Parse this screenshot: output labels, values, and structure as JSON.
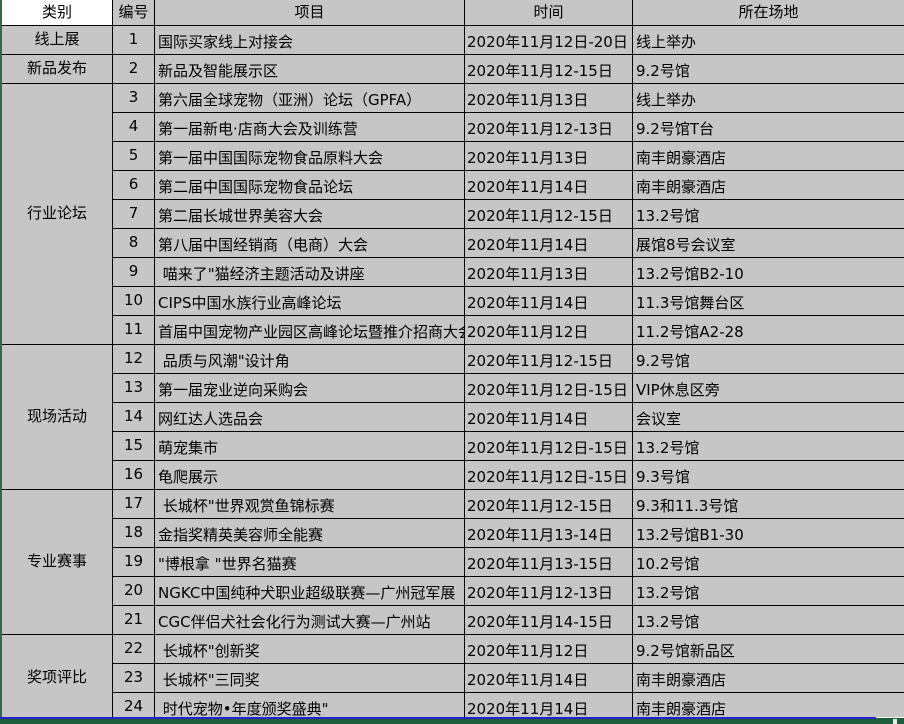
{
  "headers": {
    "category": "类别",
    "number": "编号",
    "item": "项目",
    "time": "时间",
    "venue": "所在场地"
  },
  "groups": [
    {
      "label": "线上展"
    },
    {
      "label": "新品发布"
    },
    {
      "label": "行业论坛"
    },
    {
      "label": "现场活动"
    },
    {
      "label": "专业赛事"
    },
    {
      "label": "奖项评比"
    }
  ],
  "rows": [
    {
      "num": "1",
      "item": "国际买家线上对接会",
      "time": "2020年11月12日-20日",
      "venue": "线上举办"
    },
    {
      "num": "2",
      "item": "新品及智能展示区",
      "time": "2020年11月12-15日",
      "venue": "9.2号馆"
    },
    {
      "num": "3",
      "item": "第六届全球宠物（亚洲）论坛（GPFA）",
      "time": "2020年11月13日",
      "venue": "线上举办"
    },
    {
      "num": "4",
      "item": "第一届新电·店商大会及训练营",
      "time": "2020年11月12-13日",
      "venue": "9.2号馆T台"
    },
    {
      "num": "5",
      "item": "第一届中国国际宠物食品原料大会",
      "time": "2020年11月13日",
      "venue": "南丰朗豪酒店"
    },
    {
      "num": "6",
      "item": "第二届中国国际宠物食品论坛",
      "time": "2020年11月14日",
      "venue": "南丰朗豪酒店"
    },
    {
      "num": "7",
      "item": "第二届长城世界美容大会",
      "time": "2020年11月12-15日",
      "venue": "13.2号馆"
    },
    {
      "num": "8",
      "item": "第八届中国经销商（电商）大会",
      "time": "2020年11月14日",
      "venue": "展馆8号会议室"
    },
    {
      "num": "9",
      "item": " 喵来了\"猫经济主题活动及讲座",
      "time": "2020年11月13日",
      "venue": "13.2号馆B2-10"
    },
    {
      "num": "10",
      "item": "CIPS中国水族行业高峰论坛",
      "time": "2020年11月14日",
      "venue": "11.3号馆舞台区"
    },
    {
      "num": "11",
      "item": "首届中国宠物产业园区高峰论坛暨推介招商大会",
      "time": "2020年11月12日",
      "venue": "11.2号馆A2-28"
    },
    {
      "num": "12",
      "item": " 品质与风潮\"设计角",
      "time": "2020年11月12-15日",
      "venue": "9.2号馆"
    },
    {
      "num": "13",
      "item": "第一届宠业逆向采购会",
      "time": "2020年11月12日-15日",
      "venue": "VIP休息区旁"
    },
    {
      "num": "14",
      "item": "网红达人选品会",
      "time": "2020年11月14日",
      "venue": "会议室"
    },
    {
      "num": "15",
      "item": "萌宠集市",
      "time": "2020年11月12日-15日",
      "venue": "13.2号馆"
    },
    {
      "num": "16",
      "item": "龟爬展示",
      "time": "2020年11月12日-15日",
      "venue": "9.3号馆"
    },
    {
      "num": "17",
      "item": " 长城杯\"世界观赏鱼锦标赛",
      "time": "2020年11月12-15日",
      "venue": "9.3和11.3号馆"
    },
    {
      "num": "18",
      "item": "金指奖精英美容师全能赛",
      "time": "2020年11月13-14日",
      "venue": "13.2号馆B1-30"
    },
    {
      "num": "19",
      "item": "\"博根拿 \"世界名猫赛",
      "time": "2020年11月13-15日",
      "venue": "10.2号馆"
    },
    {
      "num": "20",
      "item": "NGKC中国纯种犬职业超级联赛—广州冠军展",
      "time": "2020年11月12-13日",
      "venue": "13.2号馆"
    },
    {
      "num": "21",
      "item": "CGC伴侣犬社会化行为测试大赛—广州站",
      "time": "2020年11月14-15日",
      "venue": "13.2号馆"
    },
    {
      "num": "22",
      "item": " 长城杯\"创新奖",
      "time": "2020年11月12日",
      "venue": "9.2号馆新品区"
    },
    {
      "num": "23",
      "item": " 长城杯\"三同奖",
      "time": "2020年11月14日",
      "venue": "南丰朗豪酒店"
    },
    {
      "num": "24",
      "item": " 时代宠物•年度颁奖盛典\"",
      "time": "2020年11月14日",
      "venue": "南丰朗豪酒店"
    }
  ],
  "colors": {
    "background": "#c6c6c6",
    "grid_border": "#000000",
    "category_header_bg": "#ffffff",
    "left_edge_green": "#31694d",
    "bottom_strip_green": "#1e5e3e",
    "page_break_blue": "#2323cd"
  }
}
